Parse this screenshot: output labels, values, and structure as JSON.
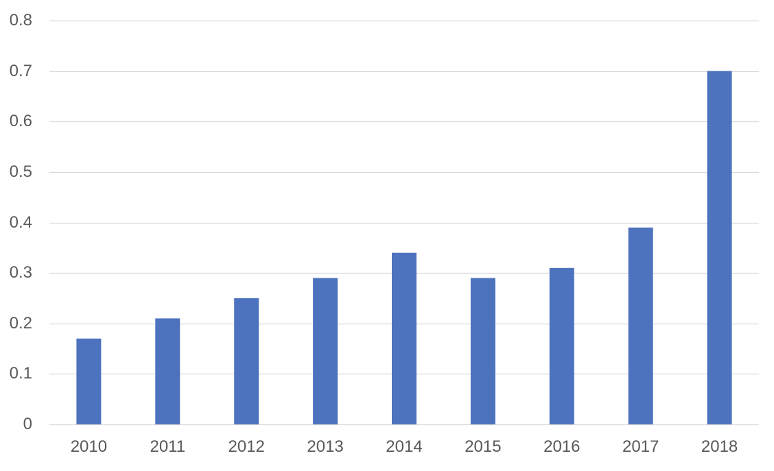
{
  "colors": {
    "bar": "#4e73be",
    "gridline": "#d9d9d9",
    "axis_text": "#595959"
  },
  "chart_data": {
    "type": "bar",
    "title": "",
    "xlabel": "",
    "ylabel": "",
    "categories": [
      "2010",
      "2011",
      "2012",
      "2013",
      "2014",
      "2015",
      "2016",
      "2017",
      "2018"
    ],
    "values": [
      0.17,
      0.21,
      0.25,
      0.29,
      0.34,
      0.29,
      0.31,
      0.39,
      0.7
    ],
    "ylim": [
      0,
      0.8
    ],
    "yticks": [
      "0",
      "0.1",
      "0.2",
      "0.3",
      "0.4",
      "0.5",
      "0.6",
      "0.7",
      "0.8"
    ],
    "grid": true,
    "legend": "none"
  }
}
